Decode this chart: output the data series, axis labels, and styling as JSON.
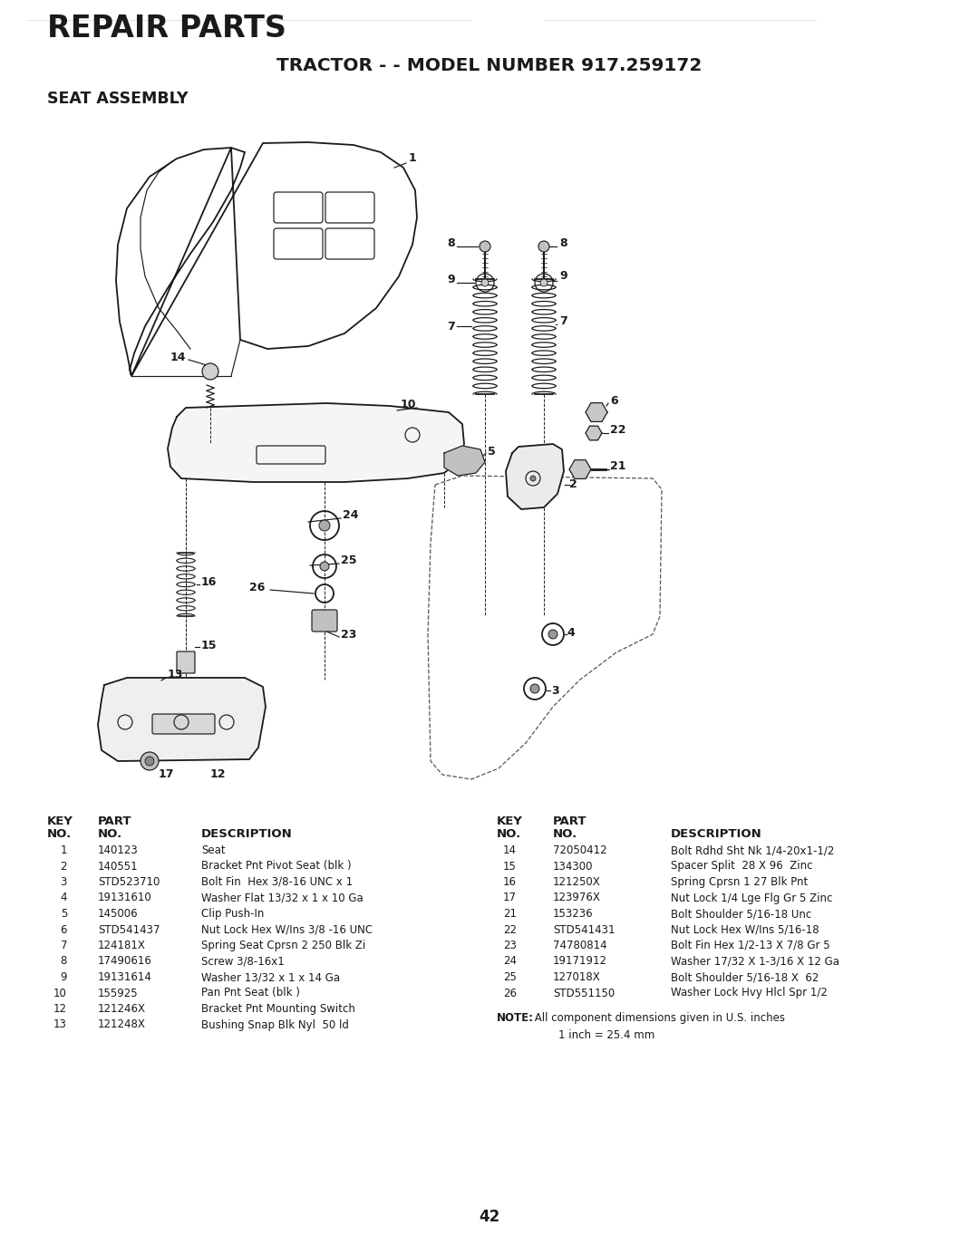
{
  "title_repair": "REPAIR PARTS",
  "title_model": "TRACTOR - - MODEL NUMBER 917.259172",
  "title_section": "SEAT ASSEMBLY",
  "page_number": "42",
  "bg": "#ffffff",
  "parts_left": [
    {
      "key": "1",
      "part": "140123",
      "desc": "Seat"
    },
    {
      "key": "2",
      "part": "140551",
      "desc": "Bracket Pnt Pivot Seat (blk )"
    },
    {
      "key": "3",
      "part": "STD523710",
      "desc": "Bolt Fin  Hex 3/8-16 UNC x 1"
    },
    {
      "key": "4",
      "part": "19131610",
      "desc": "Washer Flat 13/32 x 1 x 10 Ga"
    },
    {
      "key": "5",
      "part": "145006",
      "desc": "Clip Push-In"
    },
    {
      "key": "6",
      "part": "STD541437",
      "desc": "Nut Lock Hex W/Ins 3/8 -16 UNC"
    },
    {
      "key": "7",
      "part": "124181X",
      "desc": "Spring Seat Cprsn 2 250 Blk Zi"
    },
    {
      "key": "8",
      "part": "17490616",
      "desc": "Screw 3/8-16x1"
    },
    {
      "key": "9",
      "part": "19131614",
      "desc": "Washer 13/32 x 1 x 14 Ga"
    },
    {
      "key": "10",
      "part": "155925",
      "desc": "Pan Pnt Seat (blk )"
    },
    {
      "key": "12",
      "part": "121246X",
      "desc": "Bracket Pnt Mounting Switch"
    },
    {
      "key": "13",
      "part": "121248X",
      "desc": "Bushing Snap Blk Nyl  50 ld"
    }
  ],
  "parts_right": [
    {
      "key": "14",
      "part": "72050412",
      "desc": "Bolt Rdhd Sht Nk 1/4-20x1-1/2"
    },
    {
      "key": "15",
      "part": "134300",
      "desc": "Spacer Split  28 X 96  Zinc"
    },
    {
      "key": "16",
      "part": "121250X",
      "desc": "Spring Cprsn 1 27 Blk Pnt"
    },
    {
      "key": "17",
      "part": "123976X",
      "desc": "Nut Lock 1/4 Lge Flg Gr 5 Zinc"
    },
    {
      "key": "21",
      "part": "153236",
      "desc": "Bolt Shoulder 5/16-18 Unc"
    },
    {
      "key": "22",
      "part": "STD541431",
      "desc": "Nut Lock Hex W/Ins 5/16-18"
    },
    {
      "key": "23",
      "part": "74780814",
      "desc": "Bolt Fin Hex 1/2-13 X 7/8 Gr 5"
    },
    {
      "key": "24",
      "part": "19171912",
      "desc": "Washer 17/32 X 1-3/16 X 12 Ga"
    },
    {
      "key": "25",
      "part": "127018X",
      "desc": "Bolt Shoulder 5/16-18 X  62"
    },
    {
      "key": "26",
      "part": "STD551150",
      "desc": "Washer Lock Hvy Hlcl Spr 1/2"
    }
  ],
  "note_bold": "NOTE:",
  "note_text": " All component dimensions given in U.S. inches\n        1 inch = 25.4 mm"
}
